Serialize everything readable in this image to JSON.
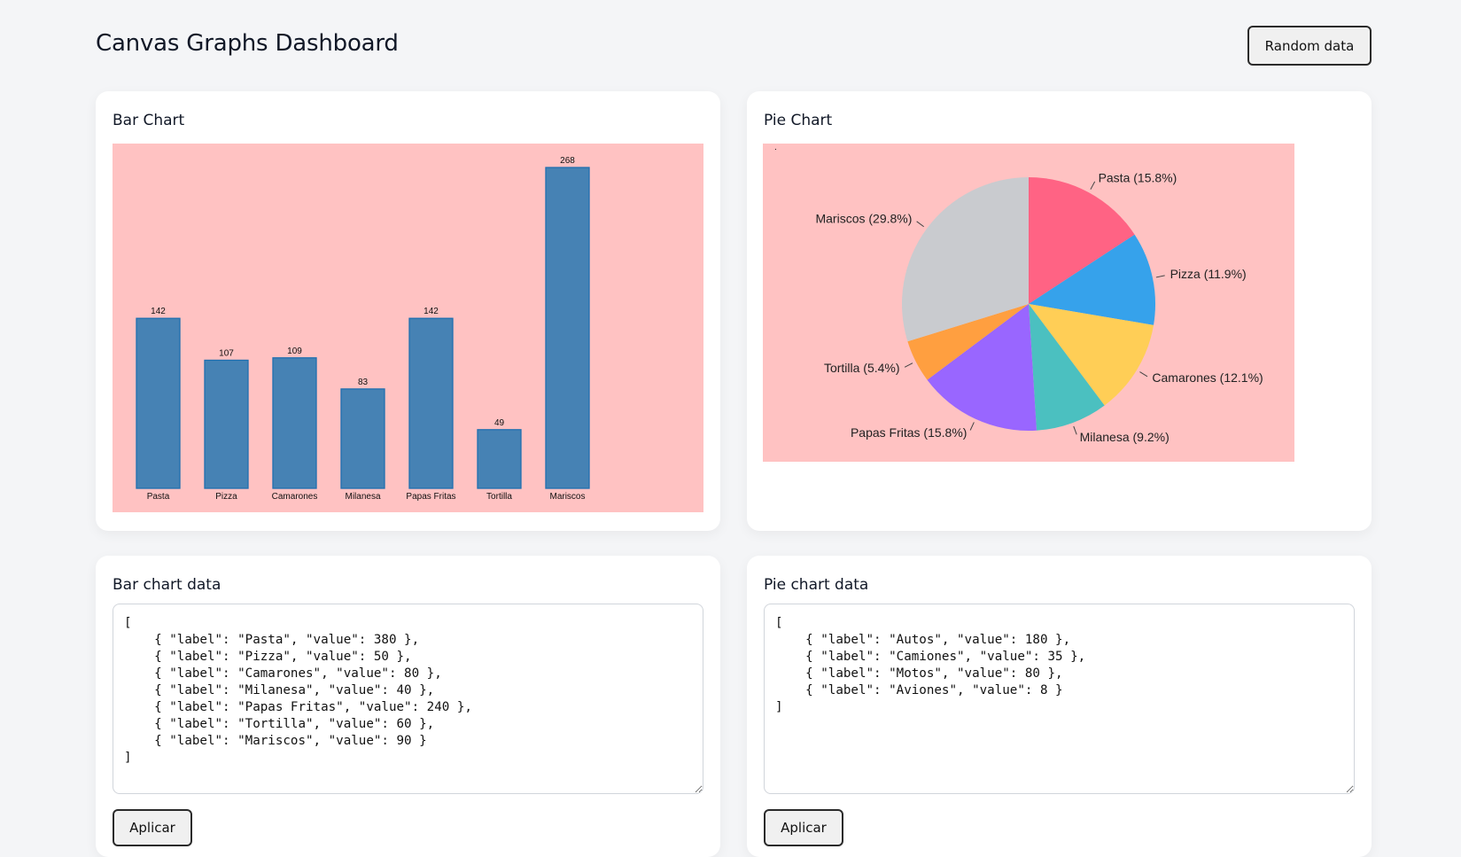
{
  "header": {
    "title": "Canvas Graphs Dashboard",
    "random_button_label": "Random data"
  },
  "bar_card": {
    "title": "Bar Chart"
  },
  "pie_card": {
    "title": "Pie Chart",
    "stray_dot": "."
  },
  "bar_data_card": {
    "title": "Bar chart data",
    "textarea_value": "[\n    { \"label\": \"Pasta\", \"value\": 380 },\n    { \"label\": \"Pizza\", \"value\": 50 },\n    { \"label\": \"Camarones\", \"value\": 80 },\n    { \"label\": \"Milanesa\", \"value\": 40 },\n    { \"label\": \"Papas Fritas\", \"value\": 240 },\n    { \"label\": \"Tortilla\", \"value\": 60 },\n    { \"label\": \"Mariscos\", \"value\": 90 }\n]",
    "apply_button_label": "Aplicar"
  },
  "pie_data_card": {
    "title": "Pie chart data",
    "textarea_value": "[\n    { \"label\": \"Autos\", \"value\": 180 },\n    { \"label\": \"Camiones\", \"value\": 35 },\n    { \"label\": \"Motos\", \"value\": 80 },\n    { \"label\": \"Aviones\", \"value\": 8 }\n]",
    "apply_button_label": "Aplicar"
  },
  "colors": {
    "page_bg": "#f4f5f7",
    "canvas_bg": "#ffc2c2",
    "bar_fill": "#4682b4",
    "bar_stroke": "#1f6fb0",
    "pie_colors": [
      "#ff6384",
      "#36a2eb",
      "#ffce56",
      "#4bc0c0",
      "#9966ff",
      "#ff9f40",
      "#c9cbcf"
    ]
  },
  "chart_data": [
    {
      "type": "bar",
      "title": "Bar Chart",
      "categories": [
        "Pasta",
        "Pizza",
        "Camarones",
        "Milanesa",
        "Papas Fritas",
        "Tortilla",
        "Mariscos"
      ],
      "values": [
        142,
        107,
        109,
        83,
        142,
        49,
        268
      ],
      "xlabel": "",
      "ylabel": "",
      "ylim": [
        0,
        280
      ],
      "grid": false,
      "data_labels": true
    },
    {
      "type": "pie",
      "title": "Pie Chart",
      "categories": [
        "Pasta",
        "Pizza",
        "Camarones",
        "Milanesa",
        "Papas Fritas",
        "Tortilla",
        "Mariscos"
      ],
      "values": [
        142,
        107,
        109,
        83,
        142,
        49,
        268
      ],
      "percent_labels": [
        "Pasta (15.8%)",
        "Pizza (11.9%)",
        "Camarones (12.1%)",
        "Milanesa (9.2%)",
        "Papas Fritas (15.8%)",
        "Tortilla (5.4%)",
        "Mariscos (29.8%)"
      ],
      "percentages": [
        15.8,
        11.9,
        12.1,
        9.2,
        15.8,
        5.4,
        29.8
      ],
      "legend": "callout labels"
    }
  ]
}
